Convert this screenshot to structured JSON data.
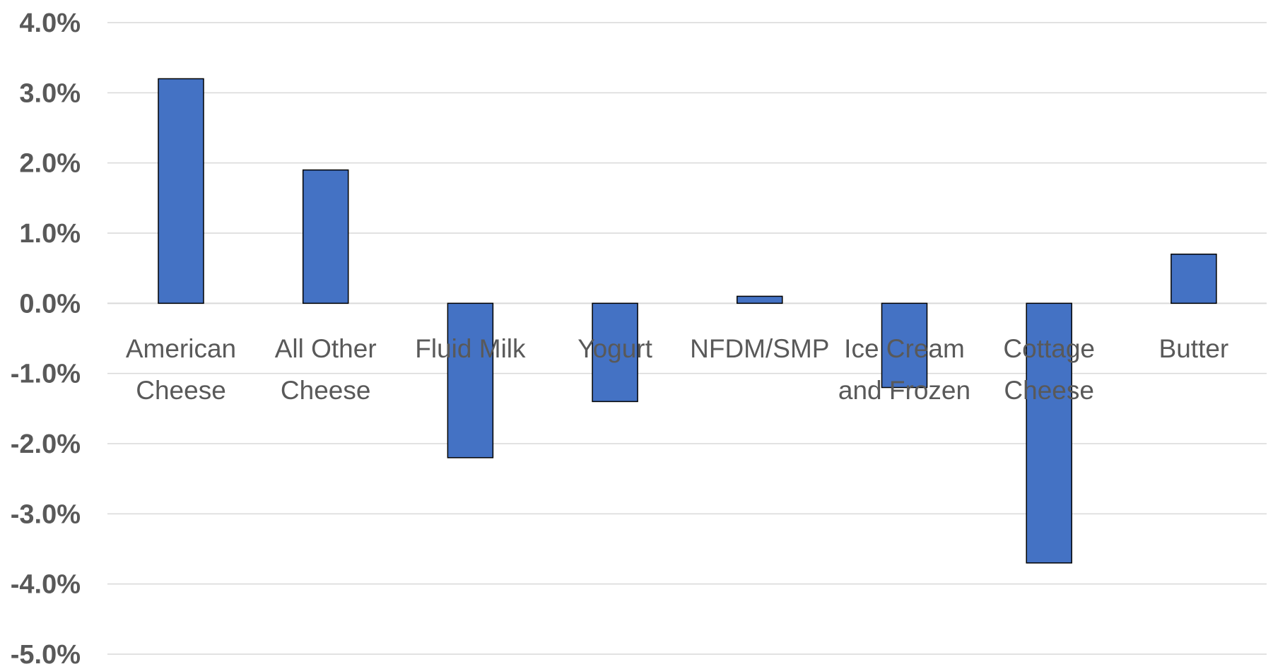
{
  "chart_data": {
    "type": "bar",
    "categories": [
      [
        "American",
        "Cheese"
      ],
      [
        "All Other",
        "Cheese"
      ],
      [
        "Fluid Milk"
      ],
      [
        "Yogurt"
      ],
      [
        "NFDM/SMP"
      ],
      [
        "Ice Cream",
        "and Frozen"
      ],
      [
        "Cottage",
        "Cheese"
      ],
      [
        "Butter"
      ]
    ],
    "values": [
      3.2,
      1.9,
      -2.2,
      -1.4,
      0.1,
      -1.2,
      -3.7,
      0.7
    ],
    "value_unit": "%",
    "ylim": [
      -5.0,
      4.0
    ],
    "yticks": [
      "4.0%",
      "3.0%",
      "2.0%",
      "1.0%",
      "0.0%",
      "-1.0%",
      "-2.0%",
      "-3.0%",
      "-4.0%",
      "-5.0%"
    ],
    "ytick_values": [
      4,
      3,
      2,
      1,
      0,
      -1,
      -2,
      -3,
      -4,
      -5
    ],
    "grid": true,
    "bar_color": "#4472c4",
    "title": "",
    "xlabel": "",
    "ylabel": ""
  }
}
